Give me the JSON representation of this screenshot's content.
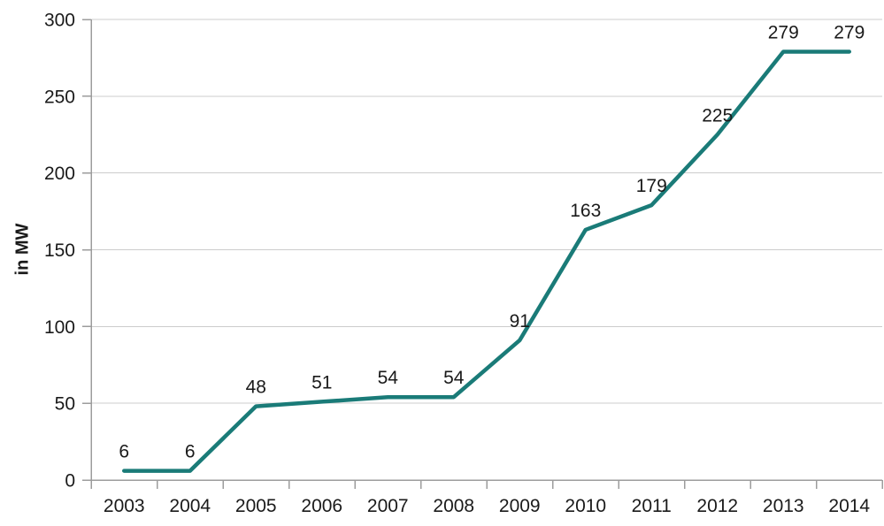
{
  "chart_data": {
    "type": "line",
    "title": "",
    "categories": [
      "2003",
      "2004",
      "2005",
      "2006",
      "2007",
      "2008",
      "2009",
      "2010",
      "2011",
      "2012",
      "2013",
      "2014"
    ],
    "values": [
      6,
      6,
      48,
      51,
      54,
      54,
      91,
      163,
      179,
      225,
      279,
      279
    ],
    "show_data_labels": true,
    "xlabel": "",
    "ylabel": "in MW",
    "ylim": [
      0,
      300
    ],
    "yticks": [
      0,
      50,
      100,
      150,
      200,
      250,
      300
    ],
    "grid": "horizontal",
    "legend": "none",
    "colors": {
      "line": "#1A7B78",
      "grid": "#CCCCCC",
      "axis": "#9C9C9C",
      "text": "#1A1A1A",
      "background": "#FFFFFF"
    }
  }
}
